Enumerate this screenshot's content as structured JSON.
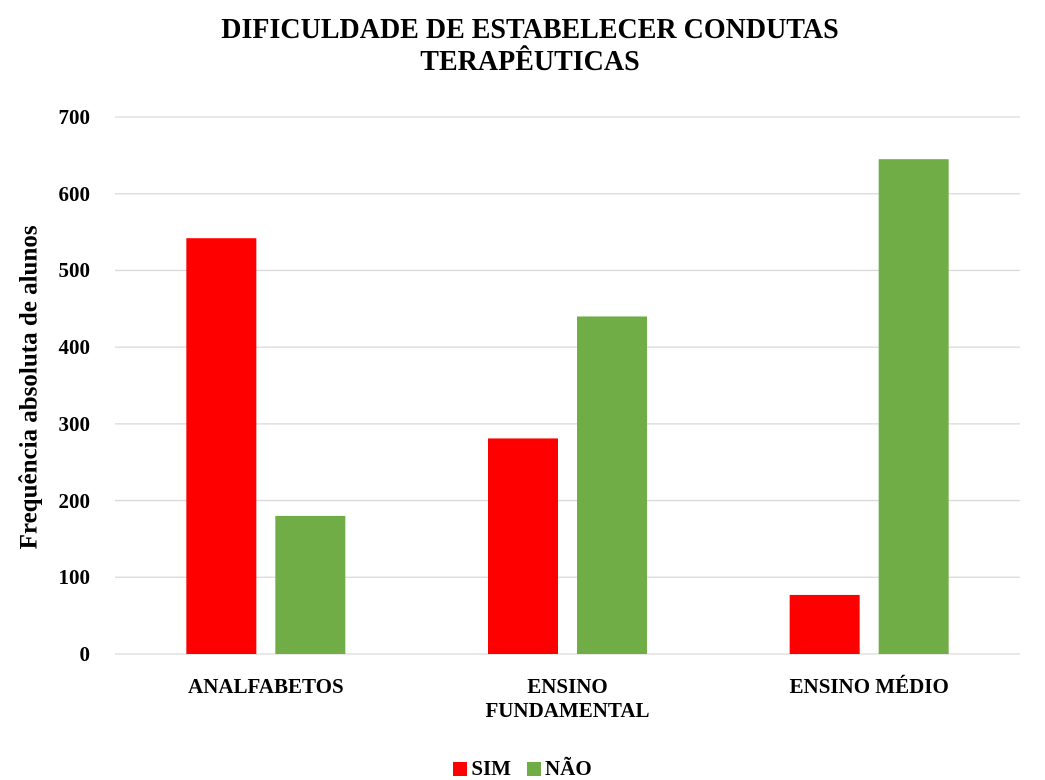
{
  "chart_data": {
    "type": "bar",
    "title": "DIFICULDADE DE ESTABELECER CONDUTAS TERAPÊUTICAS",
    "y_label": "Frequência absoluta de alunos",
    "categories": [
      "ANALFABETOS",
      "ENSINO FUNDAMENTAL",
      "ENSINO MÉDIO"
    ],
    "series": [
      {
        "name": "SIM",
        "color": "#ff0000",
        "values": [
          542,
          281,
          77
        ]
      },
      {
        "name": "NÃO",
        "color": "#70ad47",
        "values": [
          180,
          440,
          645
        ]
      }
    ],
    "ylim": [
      0,
      700
    ],
    "yticks": [
      0,
      100,
      200,
      300,
      400,
      500,
      600,
      700
    ],
    "grid": true,
    "legend": "bottom"
  }
}
